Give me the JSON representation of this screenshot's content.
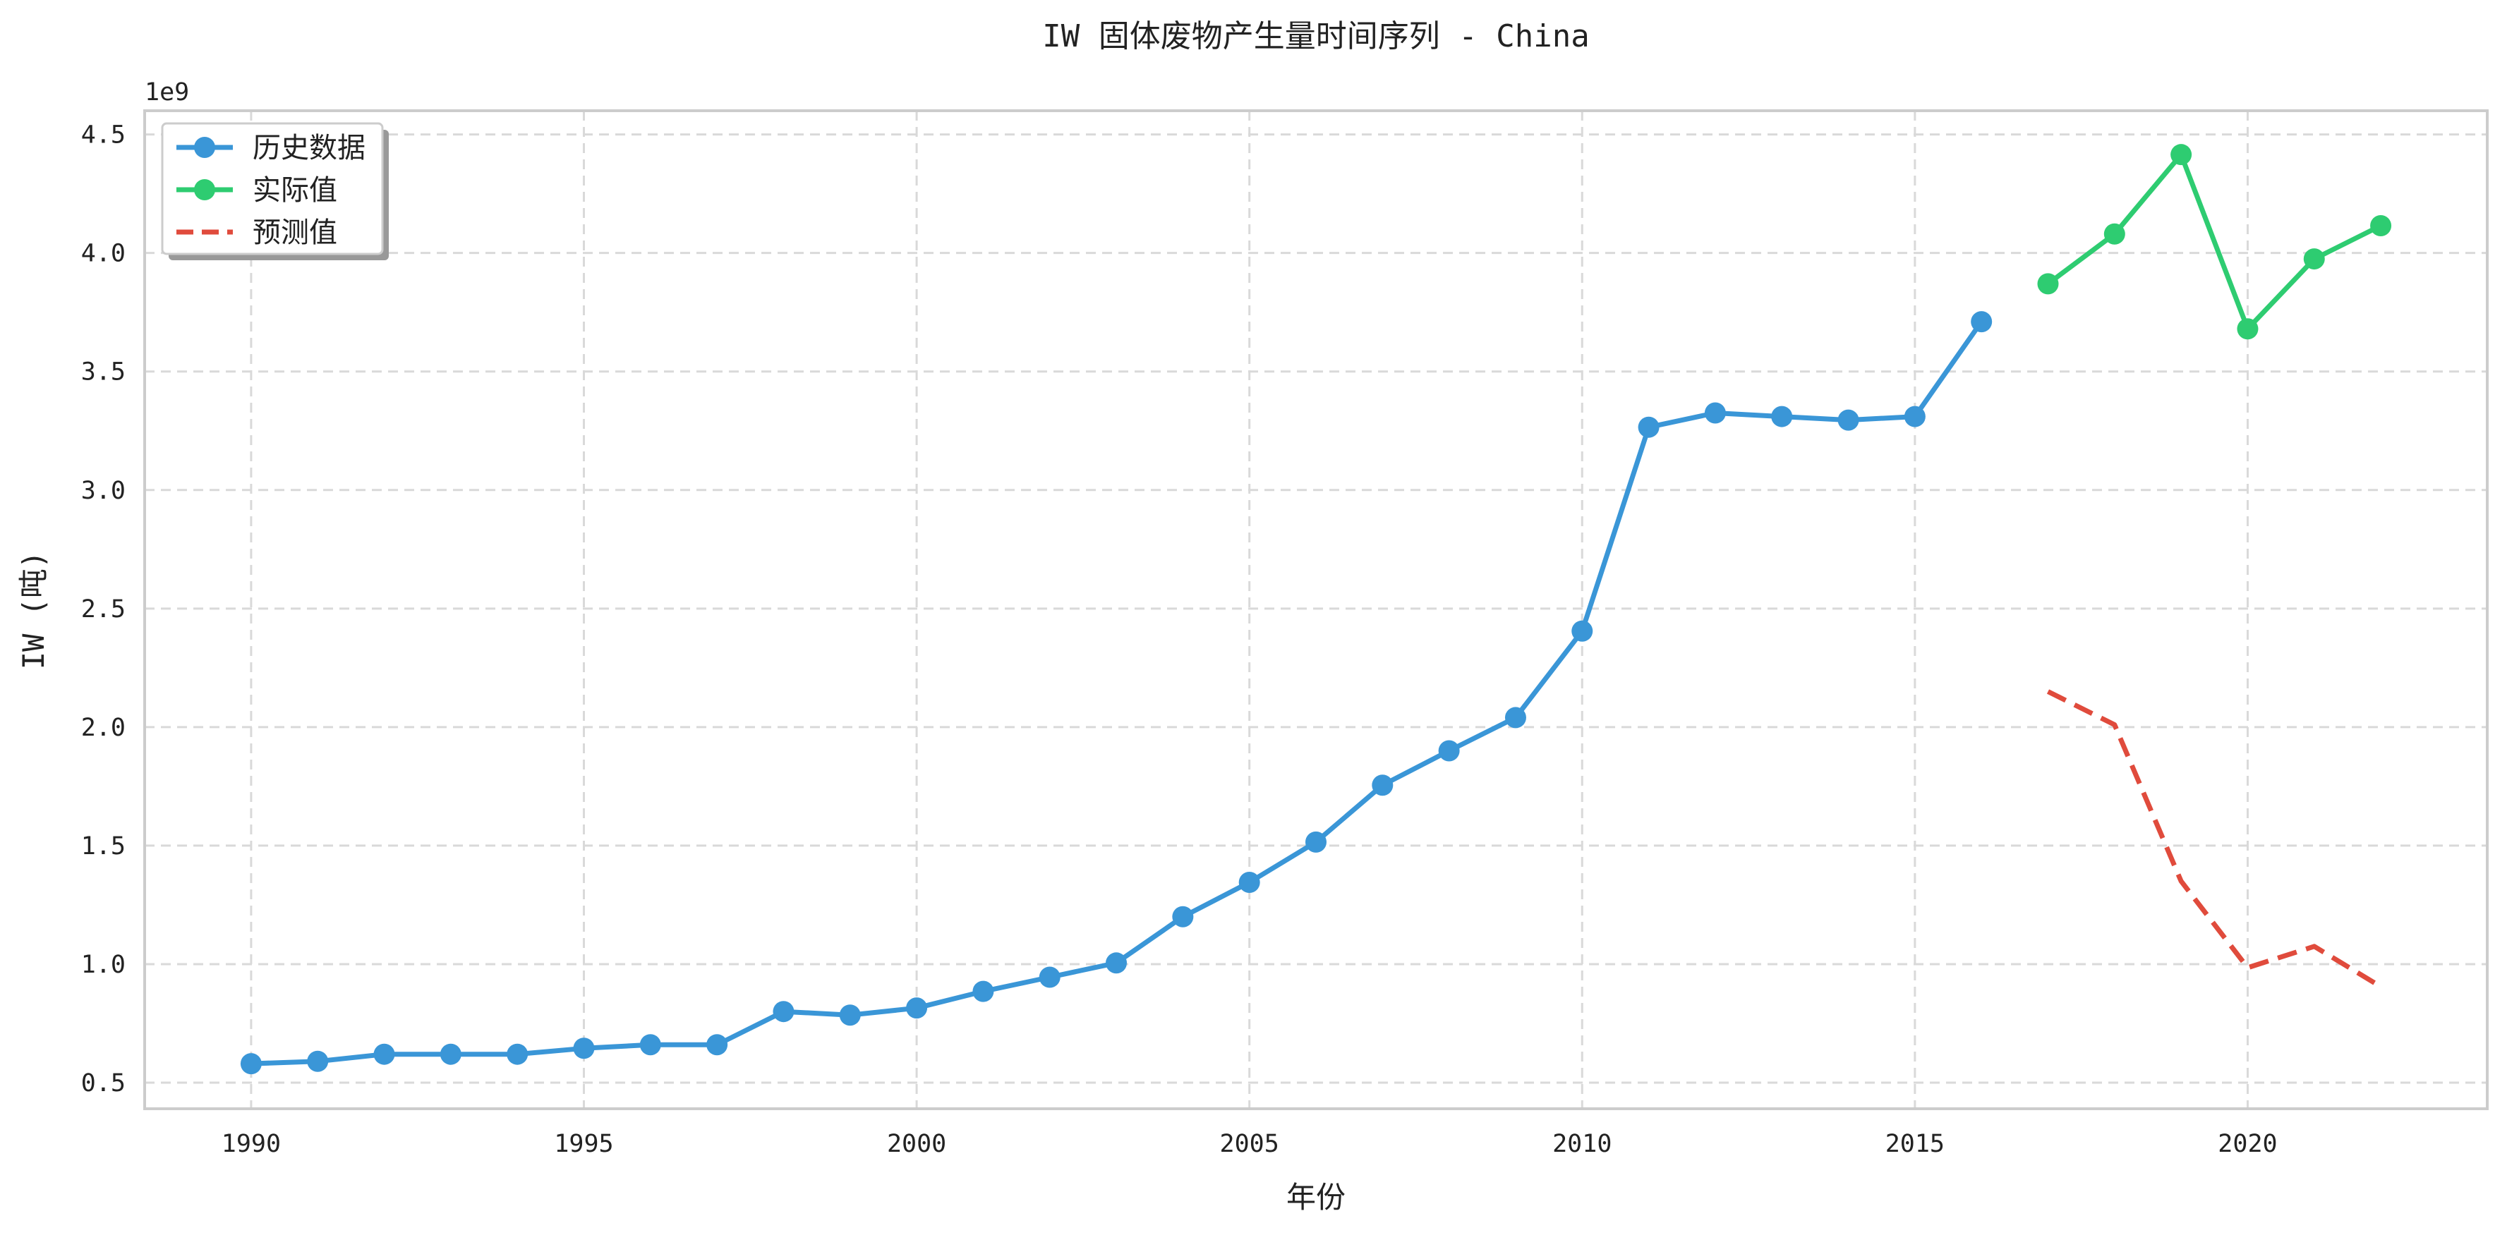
{
  "chart_data": {
    "type": "line",
    "title": "IW 固体废物产生量时间序列 - China",
    "xlabel": "年份",
    "ylabel": "IW (吨)",
    "y_multiplier_label": "1e9",
    "xlim": [
      1988.4,
      2023.6
    ],
    "ylim": [
      0.39,
      4.6
    ],
    "x_ticks": [
      1990,
      1995,
      2000,
      2005,
      2010,
      2015,
      2020
    ],
    "y_ticks": [
      0.5,
      1.0,
      1.5,
      2.0,
      2.5,
      3.0,
      3.5,
      4.0,
      4.5
    ],
    "grid": true,
    "legend_position": "top-left",
    "series": [
      {
        "name": "历史数据",
        "color": "#3a96d7",
        "style": "solid",
        "marker": true,
        "x": [
          1990,
          1991,
          1992,
          1993,
          1994,
          1995,
          1996,
          1997,
          1998,
          1999,
          2000,
          2001,
          2002,
          2003,
          2004,
          2005,
          2006,
          2007,
          2008,
          2009,
          2010,
          2011,
          2012,
          2013,
          2014,
          2015,
          2016
        ],
        "values": [
          0.58,
          0.59,
          0.62,
          0.62,
          0.62,
          0.645,
          0.66,
          0.66,
          0.8,
          0.785,
          0.815,
          0.885,
          0.945,
          1.005,
          1.2,
          1.345,
          1.515,
          1.755,
          1.9,
          2.04,
          2.405,
          3.265,
          3.325,
          3.31,
          3.295,
          3.31,
          3.71
        ]
      },
      {
        "name": "实际值",
        "color": "#2ecc71",
        "style": "solid",
        "marker": true,
        "x": [
          2017,
          2018,
          2019,
          2020,
          2021,
          2022
        ],
        "values": [
          3.87,
          4.08,
          4.415,
          3.68,
          3.975,
          4.115
        ]
      },
      {
        "name": "预测值",
        "color": "#e04b3c",
        "style": "dashed",
        "marker": false,
        "x": [
          2017,
          2018,
          2019,
          2020,
          2021,
          2022
        ],
        "values": [
          2.15,
          2.01,
          1.35,
          0.985,
          1.075,
          0.905
        ]
      }
    ]
  }
}
